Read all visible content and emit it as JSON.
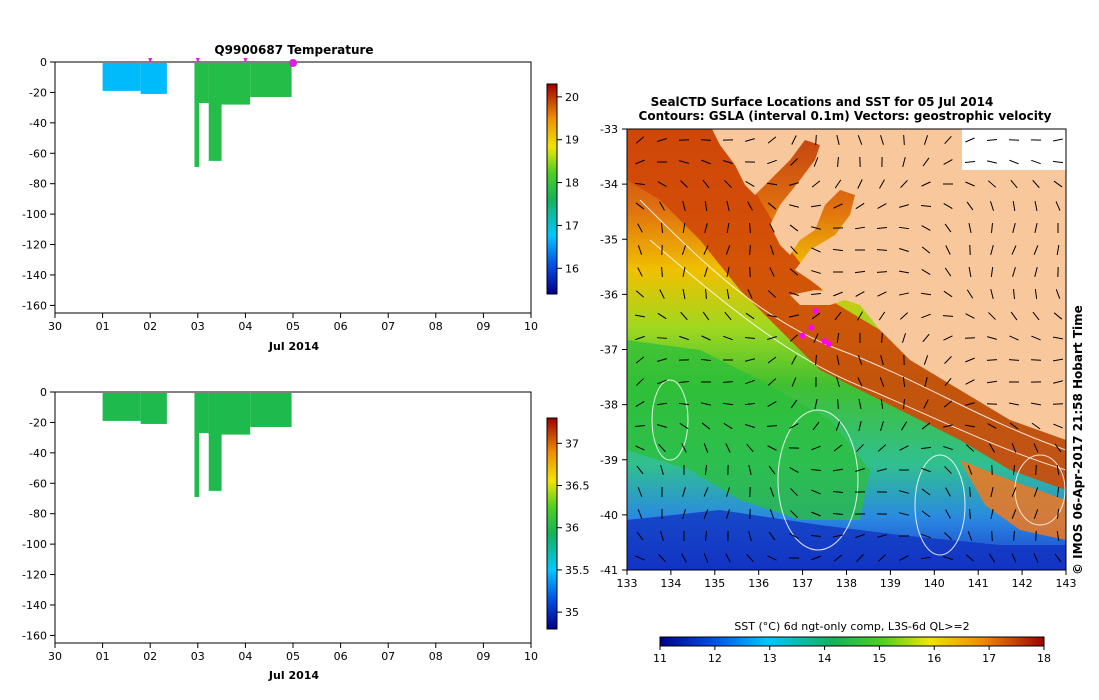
{
  "chart_data": [
    {
      "type": "bar",
      "title": "Q9900687  Temperature",
      "xlabel": "Jul 2014",
      "ylabel": "",
      "x_ticks": [
        "30",
        "01",
        "02",
        "03",
        "04",
        "05",
        "06",
        "07",
        "08",
        "09",
        "10"
      ],
      "x_range_days": [
        0,
        10
      ],
      "ylim": [
        -165,
        0
      ],
      "y_ticks": [
        0,
        -20,
        -40,
        -60,
        -80,
        -100,
        -120,
        -140,
        -160
      ],
      "markers_x_days": [
        2,
        3,
        4,
        5
      ],
      "colorbar": {
        "min": 15.4,
        "max": 20.3,
        "ticks": [
          16,
          17,
          18,
          19,
          20
        ]
      },
      "casts": [
        {
          "x0": 1.0,
          "x1": 1.8,
          "depth": -19,
          "value": 16.7
        },
        {
          "x0": 1.8,
          "x1": 2.35,
          "depth": -21,
          "value": 16.7
        },
        {
          "x0": 2.93,
          "x1": 3.03,
          "depth": -69,
          "value": 17.8
        },
        {
          "x0": 2.93,
          "x1": 3.23,
          "depth": -27,
          "value": 17.8
        },
        {
          "x0": 3.23,
          "x1": 3.5,
          "depth": -65,
          "value": 17.8
        },
        {
          "x0": 3.23,
          "x1": 4.1,
          "depth": -28,
          "value": 17.8
        },
        {
          "x0": 4.1,
          "x1": 4.97,
          "depth": -23,
          "value": 17.8
        }
      ]
    },
    {
      "type": "bar",
      "title": "",
      "xlabel": "Jul 2014",
      "ylabel": "",
      "x_ticks": [
        "30",
        "01",
        "02",
        "03",
        "04",
        "05",
        "06",
        "07",
        "08",
        "09",
        "10"
      ],
      "x_range_days": [
        0,
        10
      ],
      "ylim": [
        -165,
        0
      ],
      "y_ticks": [
        0,
        -20,
        -40,
        -60,
        -80,
        -100,
        -120,
        -140,
        -160
      ],
      "colorbar": {
        "min": 34.8,
        "max": 37.3,
        "ticks": [
          35,
          35.5,
          36,
          36.5,
          37
        ]
      },
      "casts": [
        {
          "x0": 1.0,
          "x1": 1.8,
          "depth": -19,
          "value": 36.0
        },
        {
          "x0": 1.8,
          "x1": 2.35,
          "depth": -21,
          "value": 36.0
        },
        {
          "x0": 2.93,
          "x1": 3.03,
          "depth": -69,
          "value": 36.0
        },
        {
          "x0": 2.93,
          "x1": 3.23,
          "depth": -27,
          "value": 36.0
        },
        {
          "x0": 3.23,
          "x1": 3.5,
          "depth": -65,
          "value": 36.0
        },
        {
          "x0": 3.23,
          "x1": 4.1,
          "depth": -28,
          "value": 36.0
        },
        {
          "x0": 4.1,
          "x1": 4.97,
          "depth": -23,
          "value": 36.0
        }
      ]
    },
    {
      "type": "heatmap",
      "title": "SealCTD Surface Locations and SST for 05 Jul 2014",
      "subtitle": "Contours: GSLA (interval 0.1m)  Vectors: geostrophic velocity",
      "xlabel": "",
      "ylabel": "",
      "xlim": [
        133,
        143
      ],
      "ylim": [
        -41,
        -33
      ],
      "x_ticks": [
        133,
        134,
        135,
        136,
        137,
        138,
        139,
        140,
        141,
        142,
        143
      ],
      "y_ticks": [
        -33,
        -34,
        -35,
        -36,
        -37,
        -38,
        -39,
        -40,
        -41
      ],
      "colorbar_label": "SST (°C) 6d ngt-only comp, L3S-6d QL>=2",
      "colorbar": {
        "min": 11,
        "max": 18,
        "ticks": [
          11,
          12,
          13,
          14,
          15,
          16,
          17,
          18
        ]
      },
      "seal_locations": [
        {
          "lon": 137.3,
          "lat": -36.3
        },
        {
          "lon": 137.2,
          "lat": -36.6
        },
        {
          "lon": 137.0,
          "lat": -36.75
        },
        {
          "lon": 137.5,
          "lat": -36.85
        },
        {
          "lon": 137.6,
          "lat": -36.9
        }
      ],
      "side_label": "© IMOS 06-Apr-2017 21:58 Hobart Time"
    }
  ]
}
